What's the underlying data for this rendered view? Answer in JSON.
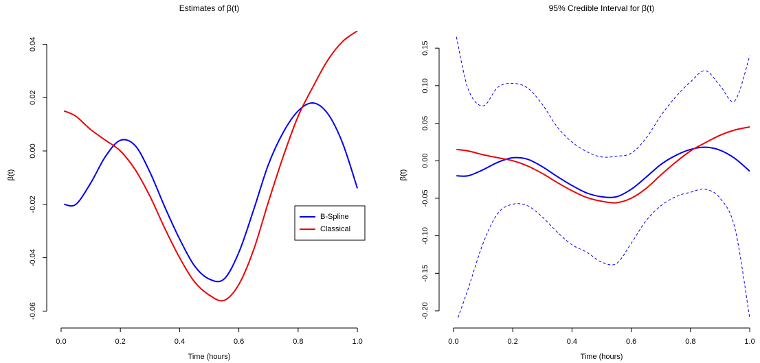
{
  "chart_data": [
    {
      "type": "line",
      "title": "Estimates of β(t)",
      "xlabel": "Time (hours)",
      "ylabel": "β(t)",
      "x": [
        0.01,
        0.05,
        0.1,
        0.15,
        0.2,
        0.25,
        0.3,
        0.35,
        0.4,
        0.45,
        0.5,
        0.55,
        0.6,
        0.65,
        0.7,
        0.75,
        0.8,
        0.85,
        0.9,
        0.95,
        1.0
      ],
      "series": [
        {
          "name": "B-Spline",
          "color": "#0000ee",
          "values": [
            -0.02,
            -0.02,
            -0.012,
            -0.002,
            0.004,
            0.002,
            -0.008,
            -0.021,
            -0.033,
            -0.043,
            -0.048,
            -0.048,
            -0.038,
            -0.022,
            -0.005,
            0.007,
            0.015,
            0.018,
            0.014,
            0.003,
            -0.014
          ]
        },
        {
          "name": "Classical",
          "color": "#ee0000",
          "values": [
            0.015,
            0.013,
            0.008,
            0.004,
            0.0,
            -0.007,
            -0.017,
            -0.029,
            -0.04,
            -0.049,
            -0.054,
            -0.056,
            -0.05,
            -0.037,
            -0.019,
            -0.002,
            0.013,
            0.024,
            0.034,
            0.041,
            0.045
          ]
        }
      ],
      "xlim": [
        -0.03,
        1.03
      ],
      "ylim": [
        -0.063,
        0.045
      ],
      "xticks": [
        {
          "value": 0,
          "label": "0.0"
        },
        0.2,
        0.4,
        0.6,
        0.8,
        {
          "value": 1,
          "label": "1.0"
        }
      ],
      "yticks": [
        -0.06,
        -0.04,
        -0.02,
        {
          "value": 0,
          "label": "0.00"
        },
        0.02,
        0.04
      ],
      "legend": "right"
    },
    {
      "type": "line",
      "title": "95% Credible Interval for β(t)",
      "xlabel": "Time (hours)",
      "ylabel": "β(t)",
      "x": [
        0.01,
        0.05,
        0.1,
        0.15,
        0.2,
        0.25,
        0.3,
        0.35,
        0.4,
        0.45,
        0.5,
        0.55,
        0.6,
        0.65,
        0.7,
        0.75,
        0.8,
        0.85,
        0.9,
        0.95,
        1.0
      ],
      "series": [
        {
          "color": "#0000ee",
          "values": [
            -0.02,
            -0.02,
            -0.012,
            -0.002,
            0.004,
            0.002,
            -0.008,
            -0.021,
            -0.033,
            -0.043,
            -0.048,
            -0.048,
            -0.038,
            -0.022,
            -0.005,
            0.007,
            0.015,
            0.018,
            0.014,
            0.003,
            -0.014
          ]
        },
        {
          "color": "#ee0000",
          "values": [
            0.015,
            0.013,
            0.008,
            0.004,
            0.0,
            -0.007,
            -0.017,
            -0.029,
            -0.04,
            -0.049,
            -0.054,
            -0.056,
            -0.05,
            -0.037,
            -0.019,
            -0.002,
            0.013,
            0.024,
            0.034,
            0.041,
            0.045
          ]
        },
        {
          "color": "#0000ee",
          "dash": true,
          "values": [
            0.165,
            0.095,
            0.073,
            0.098,
            0.103,
            0.097,
            0.075,
            0.045,
            0.025,
            0.012,
            0.005,
            0.006,
            0.01,
            0.03,
            0.06,
            0.085,
            0.105,
            0.12,
            0.1,
            0.08,
            0.14
          ]
        },
        {
          "color": "#0000ee",
          "dash": true,
          "values": [
            -0.215,
            -0.17,
            -0.11,
            -0.07,
            -0.058,
            -0.06,
            -0.075,
            -0.095,
            -0.112,
            -0.122,
            -0.135,
            -0.137,
            -0.11,
            -0.08,
            -0.06,
            -0.048,
            -0.042,
            -0.038,
            -0.05,
            -0.09,
            -0.21
          ]
        }
      ],
      "xlim": [
        -0.03,
        1.03
      ],
      "ylim": [
        -0.211,
        0.173
      ],
      "xticks": [
        {
          "value": 0,
          "label": "0.0"
        },
        0.2,
        0.4,
        0.6,
        0.8,
        {
          "value": 1,
          "label": "1.0"
        }
      ],
      "yticks": [
        {
          "value": -0.2,
          "label": "-0.20"
        },
        -0.15,
        {
          "value": -0.1,
          "label": "-0.10"
        },
        -0.05,
        {
          "value": 0,
          "label": "0.00"
        },
        0.05,
        {
          "value": 0.1,
          "label": "0.10"
        },
        0.15
      ]
    }
  ]
}
